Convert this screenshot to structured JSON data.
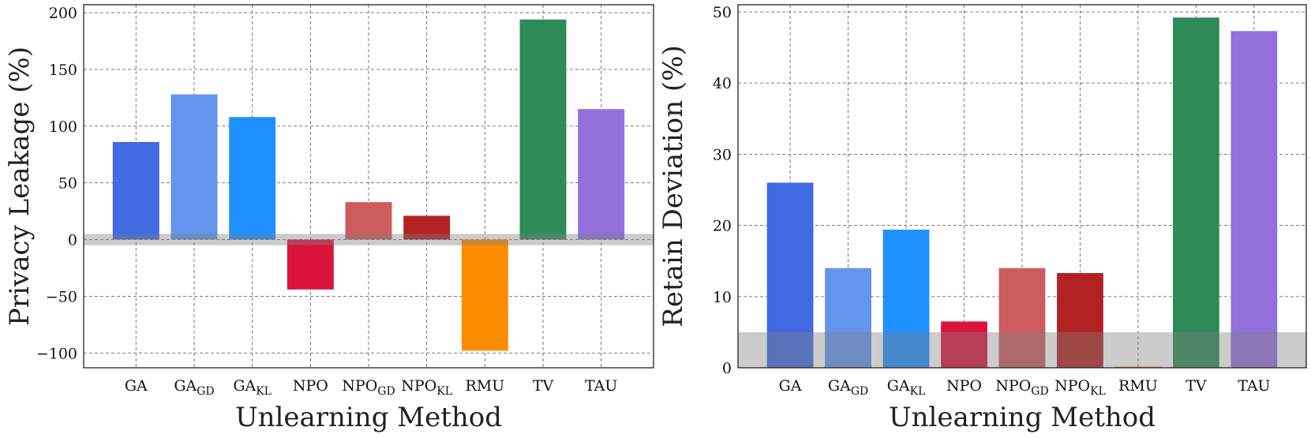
{
  "chart_data": [
    {
      "type": "bar",
      "xlabel": "Unlearning Method",
      "ylabel": "Privacy Leakage (%)",
      "ylim": [
        -113,
        207
      ],
      "yticks": [
        -100,
        -50,
        0,
        50,
        100,
        150,
        200
      ],
      "grid": true,
      "shaded_band": [
        -5,
        5
      ],
      "categories": [
        {
          "base": "GA",
          "sub": ""
        },
        {
          "base": "GA",
          "sub": "GD"
        },
        {
          "base": "GA",
          "sub": "KL"
        },
        {
          "base": "NPO",
          "sub": ""
        },
        {
          "base": "NPO",
          "sub": "GD"
        },
        {
          "base": "NPO",
          "sub": "KL"
        },
        {
          "base": "RMU",
          "sub": ""
        },
        {
          "base": "TV",
          "sub": ""
        },
        {
          "base": "TAU",
          "sub": ""
        }
      ],
      "values": [
        86,
        128,
        108,
        -44,
        33,
        21,
        -98,
        194,
        115
      ],
      "colors": [
        "#4169e1",
        "#6495ed",
        "#1e90ff",
        "#dc143c",
        "#cd5c5c",
        "#b22222",
        "#ff8c00",
        "#2e8b57",
        "#9370db"
      ]
    },
    {
      "type": "bar",
      "xlabel": "Unlearning Method",
      "ylabel": "Retain Deviation (%)",
      "ylim": [
        0,
        51
      ],
      "yticks": [
        0,
        10,
        20,
        30,
        40,
        50
      ],
      "grid": true,
      "shaded_band": [
        0,
        5
      ],
      "categories": [
        {
          "base": "GA",
          "sub": ""
        },
        {
          "base": "GA",
          "sub": "GD"
        },
        {
          "base": "GA",
          "sub": "KL"
        },
        {
          "base": "NPO",
          "sub": ""
        },
        {
          "base": "NPO",
          "sub": "GD"
        },
        {
          "base": "NPO",
          "sub": "KL"
        },
        {
          "base": "RMU",
          "sub": ""
        },
        {
          "base": "TV",
          "sub": ""
        },
        {
          "base": "TAU",
          "sub": ""
        }
      ],
      "values": [
        26,
        14,
        19.4,
        6.5,
        14,
        13.3,
        0.15,
        49.2,
        47.3
      ],
      "colors": [
        "#4169e1",
        "#6495ed",
        "#1e90ff",
        "#dc143c",
        "#cd5c5c",
        "#b22222",
        "#ff8c00",
        "#2e8b57",
        "#9370db"
      ]
    }
  ]
}
